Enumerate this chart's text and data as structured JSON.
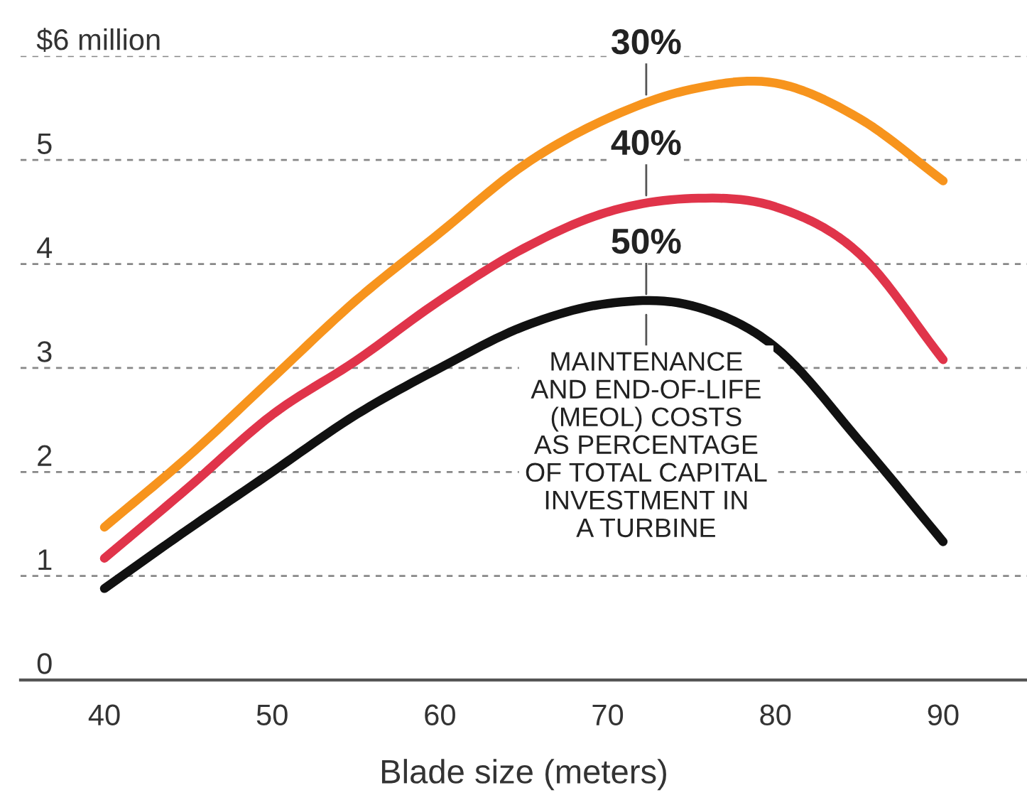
{
  "chart_data": {
    "type": "line",
    "xlabel": "Blade size (meters)",
    "x": [
      40,
      45,
      50,
      55,
      60,
      65,
      70,
      75,
      80,
      85,
      90
    ],
    "series": [
      {
        "name": "30%",
        "color": "#f7941d",
        "values": [
          1.47,
          2.15,
          2.9,
          3.65,
          4.3,
          4.95,
          5.4,
          5.68,
          5.74,
          5.4,
          4.8
        ]
      },
      {
        "name": "40%",
        "color": "#e0344a",
        "values": [
          1.17,
          1.85,
          2.55,
          3.07,
          3.65,
          4.15,
          4.5,
          4.63,
          4.55,
          4.1,
          3.08
        ]
      },
      {
        "name": "50%",
        "color": "#111111",
        "values": [
          0.88,
          1.45,
          2.0,
          2.55,
          3.0,
          3.4,
          3.62,
          3.6,
          3.2,
          2.3,
          1.33
        ]
      }
    ],
    "xlim": [
      35,
      95
    ],
    "xticks": [
      40,
      50,
      60,
      70,
      80,
      90
    ],
    "ylim": [
      0,
      6
    ],
    "yticks": [
      0,
      1,
      2,
      3,
      4,
      5,
      {
        "value": 6,
        "label": "$6 million"
      }
    ],
    "grid": "y",
    "legend": false,
    "marker": "none",
    "line_style": "solid",
    "annotations": [
      "MAINTENANCE\nAND END-OF-LIFE\n(MEOL) COSTS\nAS PERCENTAGE\nOF TOTAL CAPITAL\nINVESTMENT IN\nA TURBINE"
    ]
  }
}
